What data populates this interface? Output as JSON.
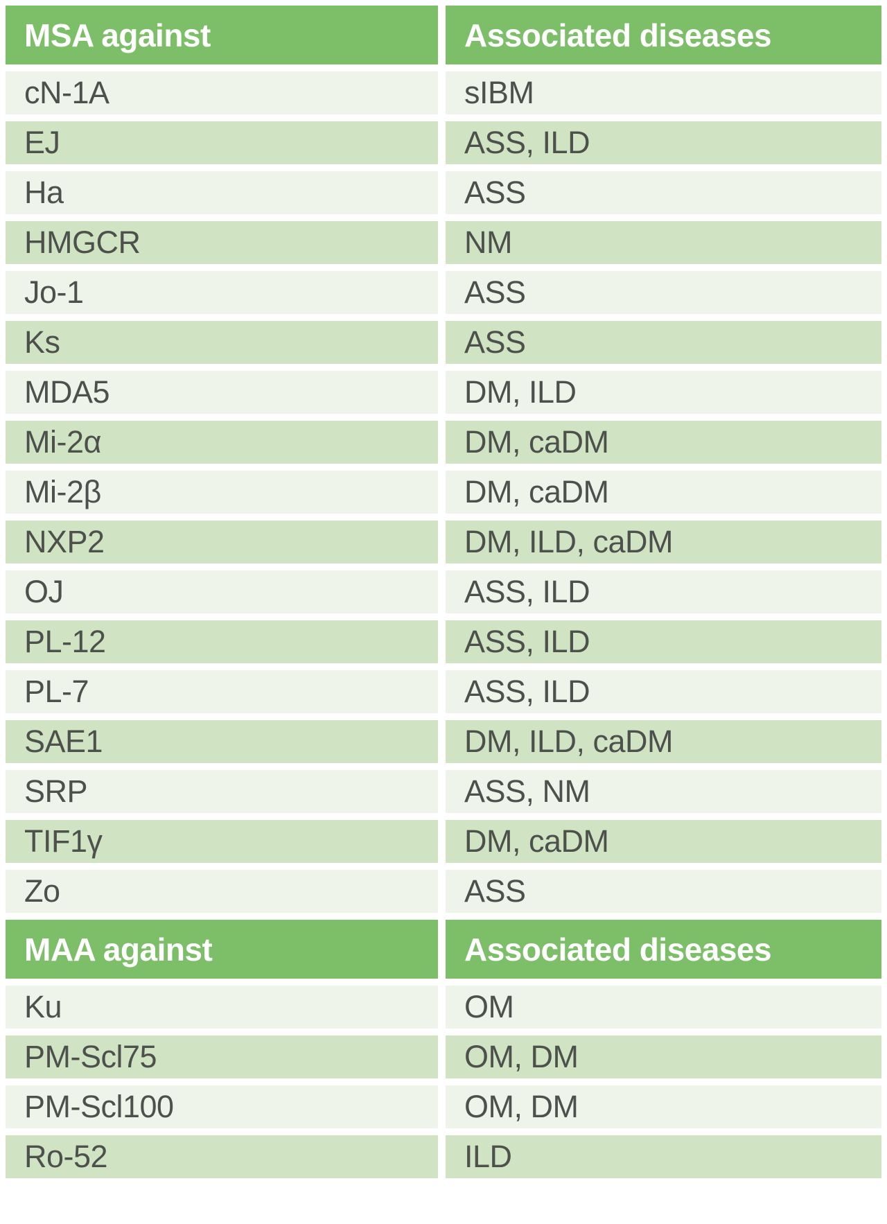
{
  "chart_data": {
    "type": "table",
    "sections": [
      {
        "columns": [
          "MSA against",
          "Associated diseases"
        ],
        "rows": [
          [
            "cN-1A",
            "sIBM"
          ],
          [
            "EJ",
            "ASS, ILD"
          ],
          [
            "Ha",
            "ASS"
          ],
          [
            "HMGCR",
            "NM"
          ],
          [
            "Jo-1",
            "ASS"
          ],
          [
            "Ks",
            "ASS"
          ],
          [
            "MDA5",
            "DM, ILD"
          ],
          [
            "Mi-2α",
            "DM, caDM"
          ],
          [
            "Mi-2β",
            "DM, caDM"
          ],
          [
            "NXP2",
            "DM, ILD, caDM"
          ],
          [
            "OJ",
            "ASS, ILD"
          ],
          [
            "PL-12",
            "ASS, ILD"
          ],
          [
            "PL-7",
            "ASS, ILD"
          ],
          [
            "SAE1",
            "DM, ILD, caDM"
          ],
          [
            "SRP",
            "ASS, NM"
          ],
          [
            "TIF1γ",
            "DM, caDM"
          ],
          [
            "Zo",
            "ASS"
          ]
        ]
      },
      {
        "columns": [
          "MAA against",
          "Associated diseases"
        ],
        "rows": [
          [
            "Ku",
            "OM"
          ],
          [
            "PM-Scl75",
            "OM, DM"
          ],
          [
            "PM-Scl100",
            "OM, DM"
          ],
          [
            "Ro-52",
            "ILD"
          ]
        ]
      }
    ],
    "layout": {
      "row_striping": [
        "light",
        "green"
      ],
      "header_repeats_per_section": true
    },
    "colors": {
      "header_bg": "#7DBF69",
      "row_light_bg": "#EFF4EA",
      "row_green_bg": "#D0E4C3",
      "header_text": "#FFFFFF",
      "cell_text": "#4D504C",
      "page_background": "#FFFFFF"
    }
  }
}
